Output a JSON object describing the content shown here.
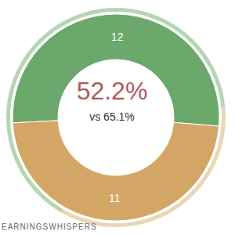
{
  "chart_data": {
    "type": "donut",
    "center_label": "52.2%",
    "center_sublabel": "vs 65.1%",
    "values": [
      12,
      11
    ],
    "colors": [
      "#6aa86c",
      "#d4a665"
    ],
    "data_labels": true,
    "comparison": {
      "values": [
        65.1,
        34.9
      ],
      "colors": [
        "#b5d6b2",
        "#ead6b4"
      ]
    },
    "footer": "EARNINGSWHISPERS"
  }
}
